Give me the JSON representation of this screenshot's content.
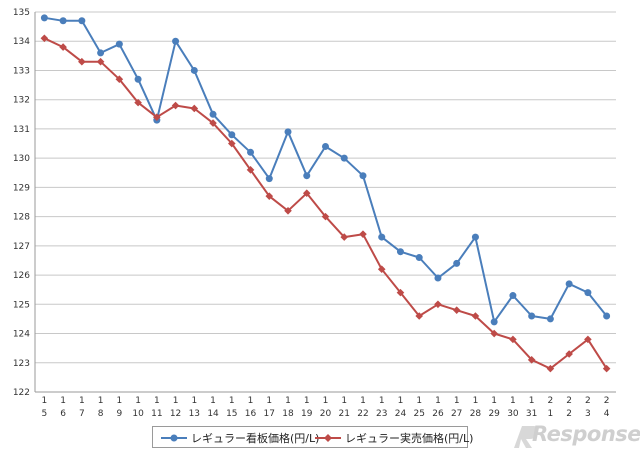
{
  "chart_data": {
    "type": "line",
    "categories": [
      {
        "top": "1",
        "bottom": "5"
      },
      {
        "top": "1",
        "bottom": "6"
      },
      {
        "top": "1",
        "bottom": "7"
      },
      {
        "top": "1",
        "bottom": "8"
      },
      {
        "top": "1",
        "bottom": "9"
      },
      {
        "top": "1",
        "bottom": "10"
      },
      {
        "top": "1",
        "bottom": "11"
      },
      {
        "top": "1",
        "bottom": "12"
      },
      {
        "top": "1",
        "bottom": "13"
      },
      {
        "top": "1",
        "bottom": "14"
      },
      {
        "top": "1",
        "bottom": "15"
      },
      {
        "top": "1",
        "bottom": "16"
      },
      {
        "top": "1",
        "bottom": "17"
      },
      {
        "top": "1",
        "bottom": "18"
      },
      {
        "top": "1",
        "bottom": "19"
      },
      {
        "top": "1",
        "bottom": "20"
      },
      {
        "top": "1",
        "bottom": "21"
      },
      {
        "top": "1",
        "bottom": "22"
      },
      {
        "top": "1",
        "bottom": "23"
      },
      {
        "top": "1",
        "bottom": "24"
      },
      {
        "top": "1",
        "bottom": "25"
      },
      {
        "top": "1",
        "bottom": "26"
      },
      {
        "top": "1",
        "bottom": "27"
      },
      {
        "top": "1",
        "bottom": "28"
      },
      {
        "top": "1",
        "bottom": "29"
      },
      {
        "top": "1",
        "bottom": "30"
      },
      {
        "top": "1",
        "bottom": "31"
      },
      {
        "top": "2",
        "bottom": "1"
      },
      {
        "top": "2",
        "bottom": "2"
      },
      {
        "top": "2",
        "bottom": "3"
      },
      {
        "top": "2",
        "bottom": "4"
      }
    ],
    "series": [
      {
        "name": "レギュラー看板価格(円/L)",
        "color": "#4a7ebb",
        "marker": "circle",
        "values": [
          134.8,
          134.7,
          134.7,
          133.6,
          133.9,
          132.7,
          131.3,
          134.0,
          133.0,
          131.5,
          130.8,
          130.2,
          129.3,
          130.9,
          129.4,
          130.4,
          130.0,
          129.4,
          127.3,
          126.8,
          126.6,
          125.9,
          126.4,
          127.3,
          124.4,
          125.3,
          124.6,
          124.5,
          125.7,
          125.4,
          124.6
        ]
      },
      {
        "name": "レギュラー実売価格(円/L)",
        "color": "#be4b48",
        "marker": "diamond",
        "values": [
          134.1,
          133.8,
          133.3,
          133.3,
          132.7,
          131.9,
          131.4,
          131.8,
          131.7,
          131.2,
          130.5,
          129.6,
          128.7,
          128.2,
          128.8,
          128.0,
          127.3,
          127.4,
          126.2,
          125.4,
          124.6,
          125.0,
          124.8,
          124.6,
          124.0,
          123.8,
          123.1,
          122.8,
          123.3,
          123.8,
          122.8
        ]
      }
    ],
    "ylim": [
      122,
      135
    ],
    "yticks": [
      "122",
      "123",
      "124",
      "125",
      "126",
      "127",
      "128",
      "129",
      "130",
      "131",
      "132",
      "133",
      "134",
      "135"
    ],
    "grid": true,
    "legend_position": "bottom"
  },
  "watermark": "Response."
}
